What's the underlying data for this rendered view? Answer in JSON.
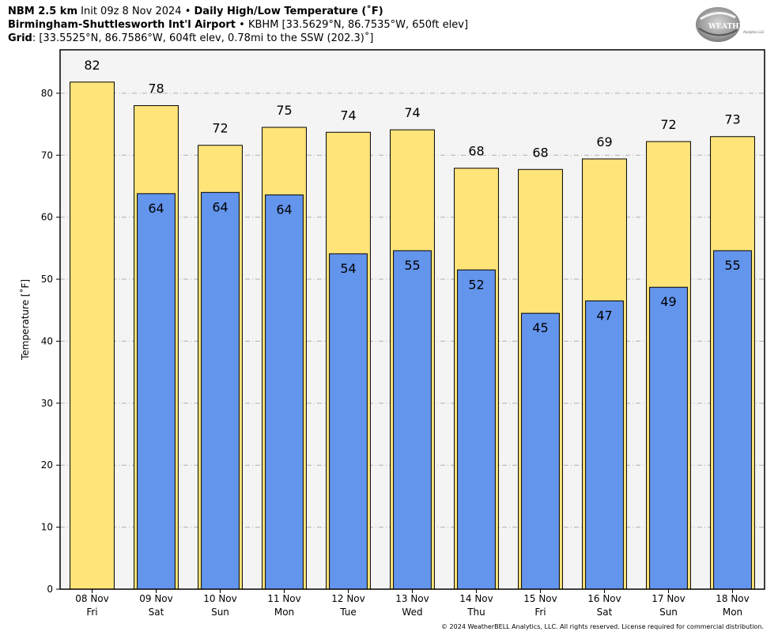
{
  "header": {
    "line1_bold1": "NBM 2.5 km",
    "line1_text1": "Init 09z 8 Nov 2024",
    "line1_sep": "•",
    "line1_bold2": "Daily High/Low Temperature (˚F)",
    "line2_bold": "Birmingham-Shuttlesworth Int'l Airport",
    "line2_sep": "•",
    "line2_text": "KBHM [33.5629°N, 86.7535°W, 650ft elev]",
    "line3_bold": "Grid",
    "line3_text": ": [33.5525°N, 86.7586°W, 604ft elev, 0.78mi to the SSW (202.3)˚]"
  },
  "logo": {
    "text_main": "WEATHERBELL",
    "text_sub": "Analytics LLC"
  },
  "footer": "© 2024 WeatherBELL Analytics, LLC. All rights reserved. License required for commercial distribution.",
  "colors": {
    "high": "#FFE47A",
    "low": "#6495ED",
    "plot_bg": "#F4F4F4"
  },
  "chart_data": {
    "type": "bar",
    "ylabel": "Temperature [˚F]",
    "ylim": [
      0,
      87
    ],
    "yticks": [
      0,
      10,
      20,
      30,
      40,
      50,
      60,
      70,
      80
    ],
    "grid": true,
    "categories": [
      [
        "08 Nov",
        "Fri"
      ],
      [
        "09 Nov",
        "Sat"
      ],
      [
        "10 Nov",
        "Sun"
      ],
      [
        "11 Nov",
        "Mon"
      ],
      [
        "12 Nov",
        "Tue"
      ],
      [
        "13 Nov",
        "Wed"
      ],
      [
        "14 Nov",
        "Thu"
      ],
      [
        "15 Nov",
        "Fri"
      ],
      [
        "16 Nov",
        "Sat"
      ],
      [
        "17 Nov",
        "Sun"
      ],
      [
        "18 Nov",
        "Mon"
      ]
    ],
    "series": [
      {
        "values": [
          82,
          78,
          72,
          75,
          74,
          74,
          68,
          68,
          69,
          72,
          73
        ],
        "bar_heights": [
          81.8,
          78.0,
          71.6,
          74.5,
          73.7,
          74.1,
          67.9,
          67.7,
          69.4,
          72.2,
          73.0
        ]
      },
      {
        "values": [
          null,
          64,
          64,
          64,
          54,
          55,
          52,
          45,
          47,
          49,
          55
        ],
        "bar_heights": [
          null,
          63.8,
          64.0,
          63.6,
          54.1,
          54.6,
          51.5,
          44.5,
          46.5,
          48.7,
          54.6
        ]
      }
    ]
  }
}
